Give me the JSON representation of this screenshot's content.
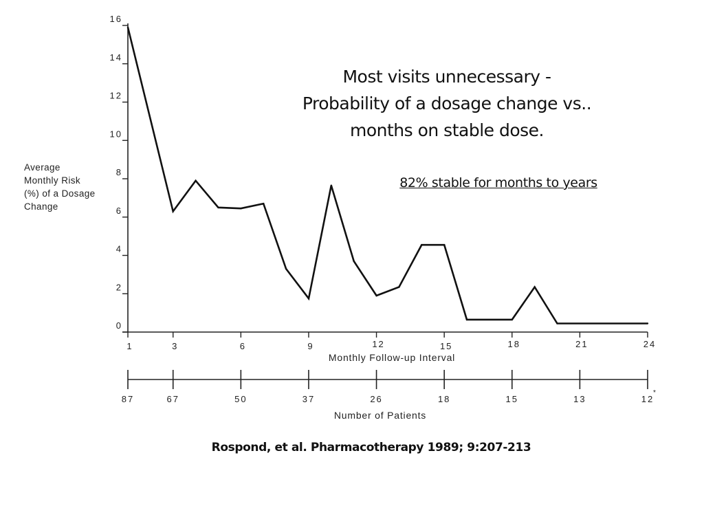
{
  "chart_data": {
    "type": "line",
    "title": "Most visits unnecessary - Probability of a dosage change vs.. months on stable dose.",
    "title_lines": [
      "Most visits unnecessary -",
      "Probability of a dosage change vs..",
      "months on stable dose."
    ],
    "annotation": "82% stable for months to years",
    "ylabel_lines": [
      "Average",
      "Monthly Risk",
      "(%) of a Dosage",
      "Change"
    ],
    "xlabel": "Monthly Follow-up Interval",
    "ylim": [
      0,
      16
    ],
    "xlim": [
      1,
      24
    ],
    "yticks": [
      0,
      2,
      4,
      6,
      8,
      10,
      12,
      14,
      16
    ],
    "ytick_labels": [
      "0",
      "2",
      "4",
      "6",
      "8",
      "10",
      "12",
      "14",
      "16"
    ],
    "xticks": [
      1,
      3,
      6,
      9,
      12,
      15,
      18,
      21,
      24
    ],
    "xtick_labels": [
      "1",
      "3",
      "6",
      "9",
      "12",
      "15",
      "18",
      "21",
      "24"
    ],
    "grid": false,
    "series": [
      {
        "name": "Average Monthly Risk (%) of a Dosage Change",
        "color": "#111111",
        "x": [
          1,
          3,
          4,
          5,
          6,
          7,
          8,
          9,
          10,
          11,
          12,
          13,
          14,
          15,
          16,
          18,
          19,
          20,
          24
        ],
        "values": [
          15.9,
          6.3,
          7.9,
          6.5,
          6.45,
          6.7,
          3.3,
          1.75,
          7.65,
          3.7,
          1.9,
          2.35,
          4.55,
          4.55,
          0.65,
          0.65,
          2.35,
          0.45,
          0.45
        ]
      }
    ],
    "patients_axis": {
      "label": "Number of Patients",
      "at_months": [
        1,
        3,
        6,
        9,
        12,
        15,
        18,
        21,
        24
      ],
      "values": [
        "87",
        "67",
        "50",
        "37",
        "26",
        "18",
        "15",
        "13",
        "12"
      ],
      "last_marker": "*"
    }
  },
  "citation": "Rospond, et al. Pharmacotherapy 1989; 9:207-213"
}
